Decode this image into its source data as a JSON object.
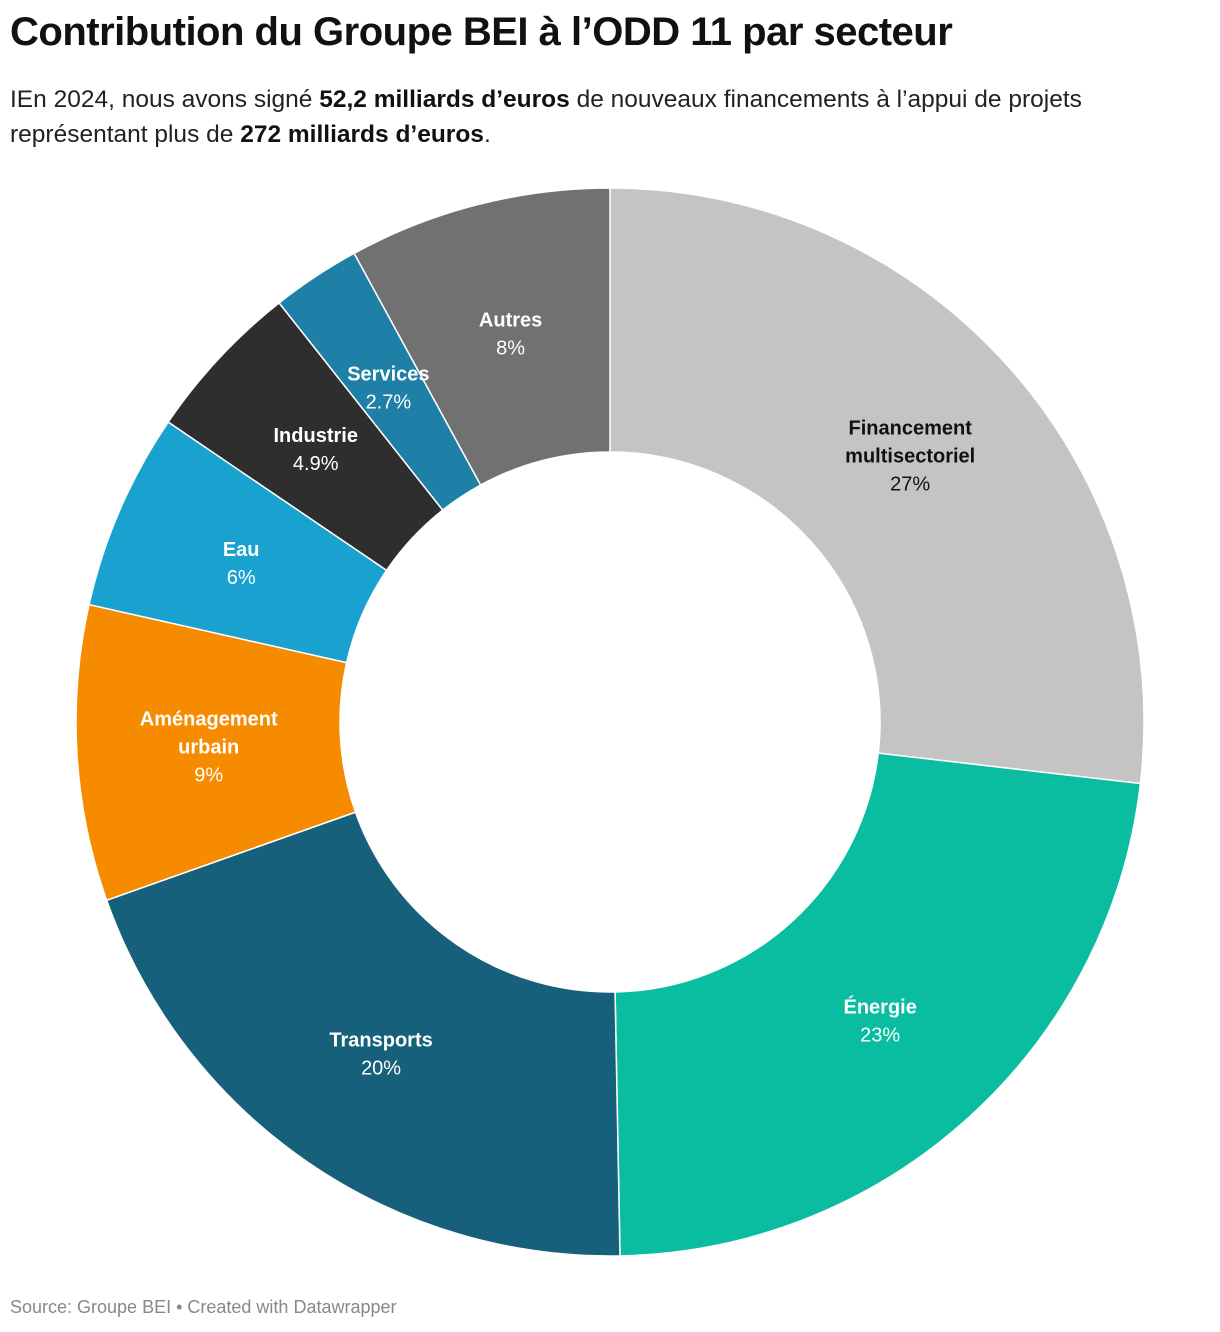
{
  "header": {
    "title": "Contribution du Groupe BEI à l’ODD 11 par secteur",
    "subtitle_part1": "IEn 2024, nous avons signé ",
    "subtitle_bold1": "52,2 milliards d’euros",
    "subtitle_part2": " de nouveaux financements à l’appui de projets représentant plus de ",
    "subtitle_bold2": "272 milliards d’euros",
    "subtitle_part3": "."
  },
  "footer": {
    "source": "Source: Groupe BEI • Created with Datawrapper"
  },
  "chart_data": {
    "type": "pie",
    "variant": "donut",
    "start_angle_deg": 0,
    "direction": "clockwise",
    "slices": [
      {
        "label": "Financement multisectoriel",
        "label_lines": [
          "Financement",
          "multisectoriel"
        ],
        "value": 27,
        "display": "27%",
        "color": "#c4c4c4",
        "text_color": "#111111"
      },
      {
        "label": "Énergie",
        "label_lines": [
          "Énergie"
        ],
        "value": 23,
        "display": "23%",
        "color": "#0bbda0",
        "text_color": "#ffffff"
      },
      {
        "label": "Transports",
        "label_lines": [
          "Transports"
        ],
        "value": 20,
        "display": "20%",
        "color": "#17607c",
        "text_color": "#ffffff"
      },
      {
        "label": "Aménagement urbain",
        "label_lines": [
          "Aménagement",
          "urbain"
        ],
        "value": 9,
        "display": "9%",
        "color": "#f68b00",
        "text_color": "#ffffff"
      },
      {
        "label": "Eau",
        "label_lines": [
          "Eau"
        ],
        "value": 6,
        "display": "6%",
        "color": "#19a1cf",
        "text_color": "#ffffff"
      },
      {
        "label": "Industrie",
        "label_lines": [
          "Industrie"
        ],
        "value": 4.9,
        "display": "4.9%",
        "color": "#2e2e2e",
        "text_color": "#ffffff"
      },
      {
        "label": "Services",
        "label_lines": [
          "Services"
        ],
        "value": 2.7,
        "display": "2.7%",
        "color": "#1e80a6",
        "text_color": "#ffffff"
      },
      {
        "label": "Autres",
        "label_lines": [
          "Autres"
        ],
        "value": 8,
        "display": "8%",
        "color": "#717171",
        "text_color": "#ffffff"
      }
    ]
  }
}
